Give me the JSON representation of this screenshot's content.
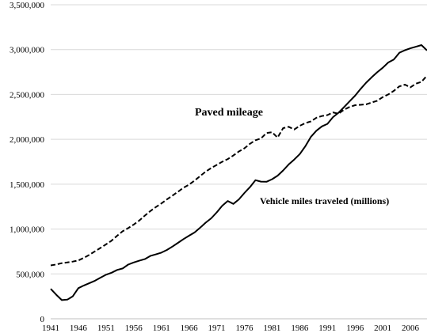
{
  "chart_data": {
    "type": "line",
    "title": "",
    "xlabel": "",
    "ylabel": "",
    "xlim": [
      1941,
      2009
    ],
    "ylim": [
      0,
      3500000
    ],
    "grid": "horizontal",
    "legend": "none",
    "x_tick_labels": [
      "1941",
      "1946",
      "1951",
      "1956",
      "1961",
      "1966",
      "1971",
      "1976",
      "1981",
      "1986",
      "1991",
      "1996",
      "2001",
      "2006"
    ],
    "y_tick_labels": [
      "0",
      "500,000",
      "1,000,000",
      "1,500,000",
      "2,000,000",
      "2,500,000",
      "3,000,000",
      "3,500,000"
    ],
    "series": [
      {
        "name": "Vehicle miles traveled (millions)",
        "style": "solid",
        "x": [
          1941,
          1942,
          1943,
          1944,
          1945,
          1946,
          1947,
          1948,
          1949,
          1950,
          1951,
          1952,
          1953,
          1954,
          1955,
          1956,
          1957,
          1958,
          1959,
          1960,
          1961,
          1962,
          1963,
          1964,
          1965,
          1966,
          1967,
          1968,
          1969,
          1970,
          1971,
          1972,
          1973,
          1974,
          1975,
          1976,
          1977,
          1978,
          1979,
          1980,
          1981,
          1982,
          1983,
          1984,
          1985,
          1986,
          1987,
          1988,
          1989,
          1990,
          1991,
          1992,
          1993,
          1994,
          1995,
          1996,
          1997,
          1998,
          1999,
          2000,
          2001,
          2002,
          2003,
          2004,
          2005,
          2006,
          2007,
          2008,
          2009
        ],
        "values": [
          333000,
          268000,
          208000,
          213000,
          250000,
          341000,
          371000,
          398000,
          424000,
          458000,
          491000,
          513000,
          544000,
          561000,
          604000,
          628000,
          647000,
          665000,
          700000,
          718000,
          737000,
          767000,
          805000,
          846000,
          888000,
          926000,
          962000,
          1015000,
          1071000,
          1120000,
          1186000,
          1260000,
          1313000,
          1280000,
          1330000,
          1402000,
          1467000,
          1545000,
          1529000,
          1527000,
          1555000,
          1595000,
          1653000,
          1720000,
          1775000,
          1835000,
          1921000,
          2026000,
          2096000,
          2144000,
          2172000,
          2247000,
          2296000,
          2358000,
          2423000,
          2486000,
          2562000,
          2632000,
          2691000,
          2747000,
          2797000,
          2856000,
          2890000,
          2965000,
          2993000,
          3014000,
          3032000,
          3050000,
          2990000
        ]
      },
      {
        "name": "Paved mileage",
        "style": "dashed",
        "x": [
          1941,
          1942,
          1943,
          1944,
          1945,
          1946,
          1947,
          1948,
          1949,
          1950,
          1951,
          1952,
          1953,
          1954,
          1955,
          1956,
          1957,
          1958,
          1959,
          1960,
          1961,
          1962,
          1963,
          1964,
          1965,
          1966,
          1967,
          1968,
          1969,
          1970,
          1971,
          1972,
          1973,
          1974,
          1975,
          1976,
          1977,
          1978,
          1979,
          1980,
          1981,
          1982,
          1983,
          1984,
          1985,
          1986,
          1987,
          1988,
          1989,
          1990,
          1991,
          1992,
          1993,
          1994,
          1995,
          1996,
          1997,
          1998,
          1999,
          2000,
          2001,
          2002,
          2003,
          2004,
          2005,
          2006,
          2007,
          2008,
          2009
        ],
        "values": [
          595000,
          605000,
          620000,
          628000,
          637000,
          650000,
          680000,
          713000,
          752000,
          790000,
          830000,
          870000,
          925000,
          975000,
          1010000,
          1050000,
          1095000,
          1150000,
          1200000,
          1245000,
          1285000,
          1330000,
          1373000,
          1416000,
          1460000,
          1495000,
          1540000,
          1590000,
          1640000,
          1680000,
          1715000,
          1750000,
          1780000,
          1820000,
          1865000,
          1900000,
          1950000,
          1990000,
          2010000,
          2070000,
          2080000,
          2020000,
          2125000,
          2140000,
          2110000,
          2150000,
          2180000,
          2200000,
          2240000,
          2260000,
          2270000,
          2300000,
          2285000,
          2330000,
          2360000,
          2380000,
          2385000,
          2390000,
          2410000,
          2430000,
          2470000,
          2500000,
          2540000,
          2590000,
          2610000,
          2580000,
          2620000,
          2640000,
          2710000
        ]
      }
    ]
  }
}
